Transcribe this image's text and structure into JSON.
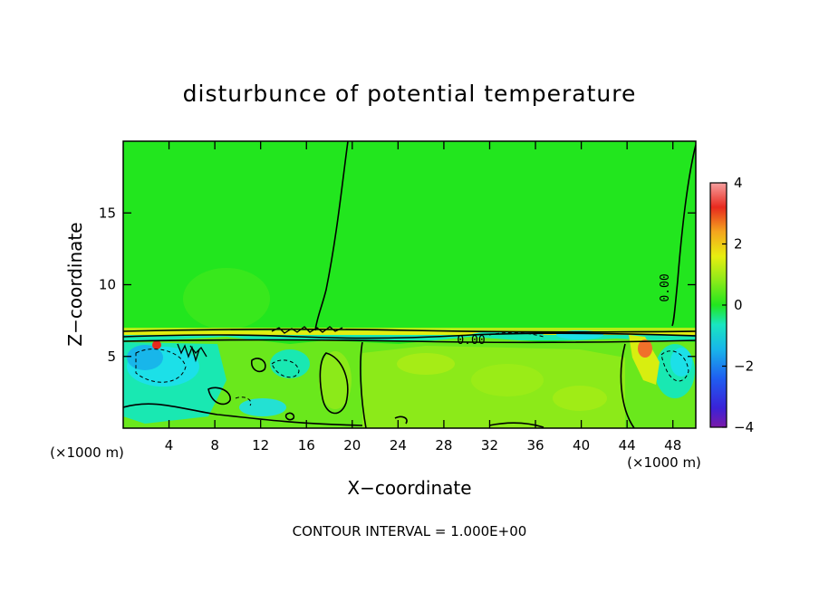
{
  "chart_data": {
    "type": "heatmap",
    "title": "disturbunce of potential temperature",
    "xlabel": "X−coordinate",
    "ylabel": "Z−coordinate",
    "x_unit_left": "(×1000 m)",
    "x_unit_right": "(×1000 m)",
    "xlim": [
      0,
      50
    ],
    "ylim": [
      0,
      20
    ],
    "x_ticks": [
      4,
      8,
      12,
      16,
      20,
      24,
      28,
      32,
      36,
      40,
      44,
      48
    ],
    "x_tick_labels": [
      "4",
      "8",
      "12",
      "16",
      "20",
      "24",
      "28",
      "32",
      "36",
      "40",
      "44",
      "48"
    ],
    "y_ticks": [
      5,
      10,
      15
    ],
    "y_tick_labels": [
      "5",
      "10",
      "15"
    ],
    "colorbar": {
      "range": [
        -4,
        4
      ],
      "ticks": [
        4,
        2,
        0,
        -2,
        -4
      ],
      "tick_labels": [
        "4",
        "2",
        "0",
        "−2",
        "−4"
      ]
    },
    "contour_labels": [
      "0.00",
      "0.00"
    ],
    "contour_interval_text": "CONTOUR INTERVAL = 1.000E+00",
    "colors": {
      "background_field": "#22e61e",
      "positive_low": "#8cea19",
      "positive_mid": "#d8ee10",
      "negative_low": "#19e8b2",
      "negative_mid": "#1ce0e8",
      "hot_spot": "#f0702a"
    }
  }
}
